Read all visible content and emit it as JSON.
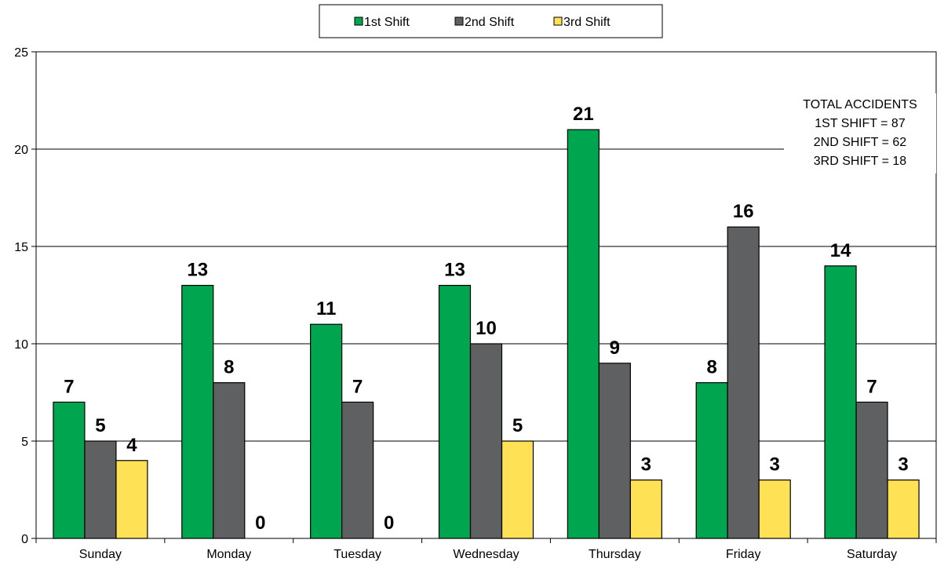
{
  "chart_data": {
    "type": "bar",
    "title": "",
    "xlabel": "",
    "ylabel": "",
    "categories": [
      "Sunday",
      "Monday",
      "Tuesday",
      "Wednesday",
      "Thursday",
      "Friday",
      "Saturday"
    ],
    "series": [
      {
        "name": "1st Shift",
        "color": "#00A550",
        "values": [
          7,
          13,
          11,
          13,
          21,
          8,
          14
        ]
      },
      {
        "name": "2nd Shift",
        "color": "#5F6062",
        "values": [
          5,
          8,
          7,
          10,
          9,
          16,
          7
        ]
      },
      {
        "name": "3rd Shift",
        "color": "#FFE156",
        "values": [
          4,
          0,
          0,
          5,
          3,
          3,
          3
        ]
      }
    ],
    "ylim": [
      0,
      25
    ],
    "yticks": [
      0,
      5,
      10,
      15,
      20,
      25
    ],
    "grid": true,
    "legend_position": "top-center",
    "annotation": [
      "TOTAL ACCIDENTS",
      "1ST SHIFT = 87",
      "2ND SHIFT = 62",
      "3RD SHIFT = 18"
    ]
  }
}
